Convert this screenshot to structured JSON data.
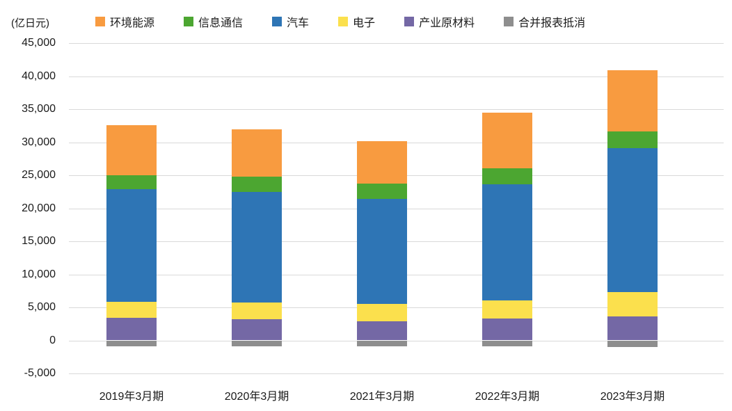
{
  "chart_data": {
    "type": "bar",
    "stacked": true,
    "unit_label": "(亿日元)",
    "title": "",
    "xlabel": "",
    "ylabel": "(亿日元)",
    "categories": [
      "2019年3月期",
      "2020年3月期",
      "2021年3月期",
      "2022年3月期",
      "2023年3月期"
    ],
    "series": [
      {
        "name": "环境能源",
        "color": "#F89B40",
        "values": [
          7600,
          7100,
          6400,
          8400,
          9300
        ]
      },
      {
        "name": "信息通信",
        "color": "#4CA631",
        "values": [
          2100,
          2300,
          2300,
          2500,
          2500
        ]
      },
      {
        "name": "汽车",
        "color": "#2E75B5",
        "values": [
          17100,
          16800,
          15900,
          17500,
          21800
        ]
      },
      {
        "name": "电子",
        "color": "#FBE04D",
        "values": [
          2400,
          2500,
          2650,
          2800,
          3700
        ]
      },
      {
        "name": "产业原材料",
        "color": "#7468A5",
        "values": [
          3400,
          3200,
          2900,
          3300,
          3600
        ]
      },
      {
        "name": "合并报表抵消",
        "color": "#8E8E8E",
        "values": [
          -900,
          -900,
          -900,
          -900,
          -1000
        ]
      }
    ],
    "stack_draw_order": [
      4,
      3,
      2,
      1,
      0,
      5
    ],
    "y_axis": {
      "min": -5000,
      "max": 45000,
      "step": 5000,
      "tick_labels": [
        "45,000",
        "40,000",
        "35,000",
        "30,000",
        "25,000",
        "20,000",
        "15,000",
        "10,000",
        "5,000",
        "0",
        "-5,000"
      ]
    },
    "grid": true,
    "legend_position": "top",
    "colors": {
      "gridline": "#d9d9d9",
      "text": "#1a1a1a",
      "background": "#ffffff"
    }
  }
}
